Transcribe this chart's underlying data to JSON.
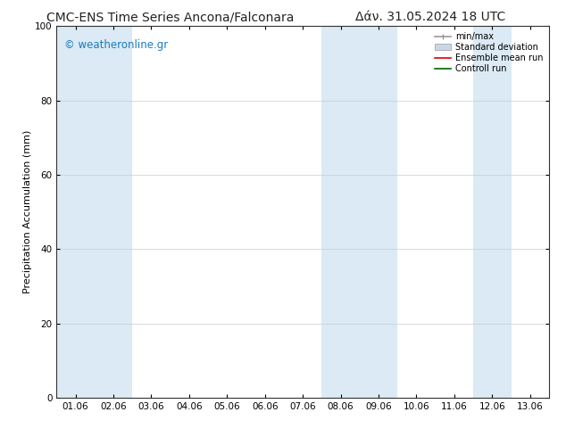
{
  "title_left": "CMC-ENS Time Series Ancona/Falconara",
  "title_right": "Δάν. 31.05.2024 18 UTC",
  "ylabel": "Precipitation Accumulation (mm)",
  "watermark": "© weatheronline.gr",
  "watermark_color": "#1a7abf",
  "ylim": [
    0,
    100
  ],
  "yticks": [
    0,
    20,
    40,
    60,
    80,
    100
  ],
  "x_labels": [
    "01.06",
    "02.06",
    "03.06",
    "04.06",
    "05.06",
    "06.06",
    "07.06",
    "08.06",
    "09.06",
    "10.06",
    "11.06",
    "12.06",
    "13.06"
  ],
  "shaded_columns": [
    0,
    1,
    7,
    8,
    11
  ],
  "band_color": "#dbeaf5",
  "bg_color": "#ffffff",
  "plot_bg_color": "#ffffff",
  "spine_color": "#333333",
  "grid_color": "#cccccc",
  "legend_items": [
    {
      "label": "min/max",
      "color": "#999999",
      "lw": 1.2,
      "style": "errorbar"
    },
    {
      "label": "Standard deviation",
      "color": "#c8d8e8",
      "lw": 5,
      "style": "band"
    },
    {
      "label": "Ensemble mean run",
      "color": "#dd0000",
      "lw": 1.2,
      "style": "line"
    },
    {
      "label": "Controll run",
      "color": "#006600",
      "lw": 1.2,
      "style": "line"
    }
  ],
  "title_fontsize": 10,
  "axis_label_fontsize": 8,
  "tick_fontsize": 7.5,
  "watermark_fontsize": 8.5,
  "legend_fontsize": 7
}
